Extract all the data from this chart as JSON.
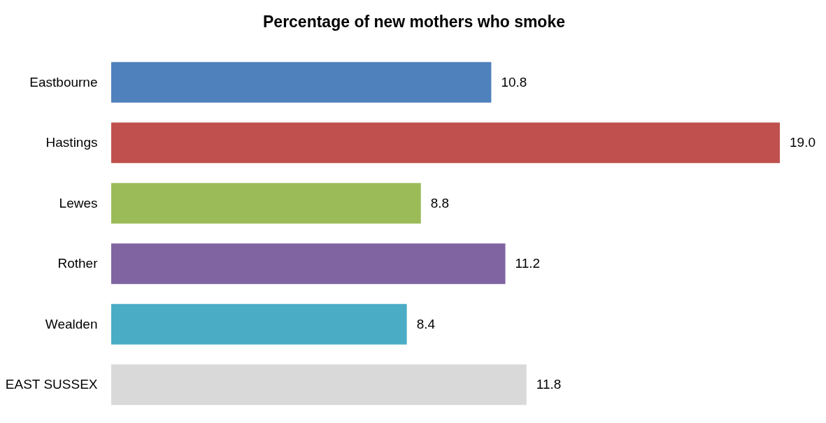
{
  "chart_data": {
    "type": "bar",
    "orientation": "horizontal",
    "title": "Percentage of new mothers who smoke",
    "categories": [
      "Eastbourne",
      "Hastings",
      "Lewes",
      "Rother",
      "Wealden",
      "EAST SUSSEX"
    ],
    "values": [
      10.8,
      19.0,
      8.8,
      11.2,
      8.4,
      11.8
    ],
    "value_labels": [
      "10.8",
      "19.0",
      "8.8",
      "11.2",
      "8.4",
      "11.8"
    ],
    "colors": [
      "#4f81bd",
      "#c0504d",
      "#9bbb59",
      "#8064a2",
      "#4bacc6",
      "#d9d9d9"
    ],
    "tick_labels": "y"
  }
}
